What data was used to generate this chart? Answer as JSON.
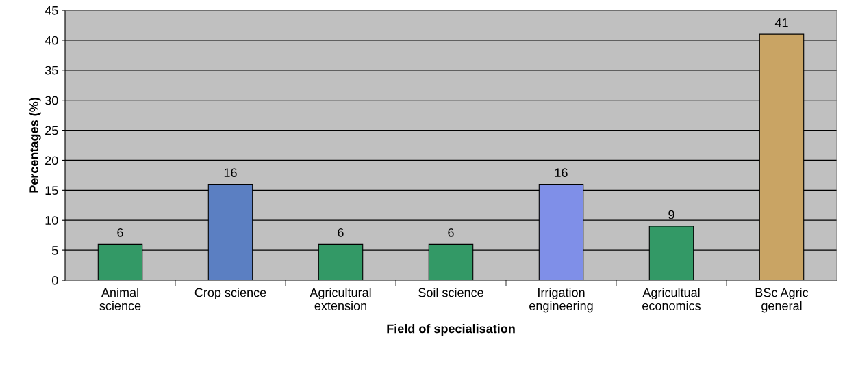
{
  "chart_data": {
    "type": "bar",
    "xlabel": "Field of specialisation",
    "ylabel": "Percentages (%)",
    "categories": [
      "Animal\nscience",
      "Crop science",
      "Agricultural\nextension",
      "Soil science",
      "Irrigation\nengineering",
      "Agricultual\neconomics",
      "BSc Agric\ngeneral"
    ],
    "values": [
      6,
      16,
      6,
      6,
      16,
      9,
      41
    ],
    "colors": [
      "#339966",
      "#5b7fc2",
      "#339966",
      "#339966",
      "#7f8fe8",
      "#339966",
      "#c9a464"
    ],
    "ylim": [
      0,
      45
    ],
    "yticks": [
      0,
      5,
      10,
      15,
      20,
      25,
      30,
      35,
      40,
      45
    ],
    "grid": "y",
    "data_labels": true
  }
}
